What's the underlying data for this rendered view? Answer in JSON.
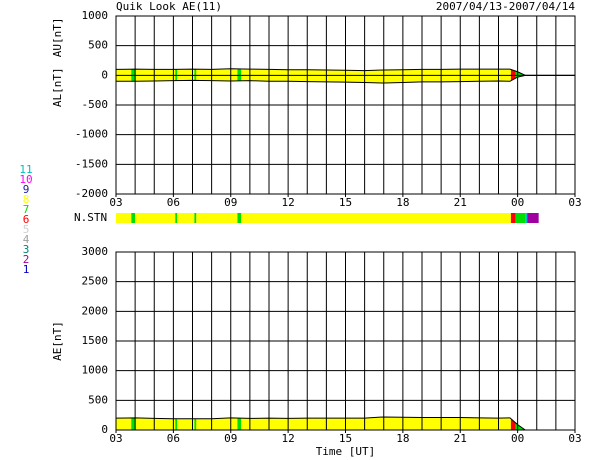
{
  "title": "Quik Look AE(11)",
  "date_range": "2007/04/13-2007/04/14",
  "chart_data": [
    {
      "type": "band",
      "ylabels": [
        "AU[nT]",
        "AL[nT]"
      ],
      "x": [
        3,
        4,
        5,
        6,
        7,
        8,
        9,
        10,
        11,
        12,
        13,
        14,
        15,
        16,
        17,
        18,
        19,
        20,
        21,
        22,
        23,
        23.6,
        24,
        24.4,
        25,
        27
      ],
      "au": [
        100,
        105,
        100,
        100,
        105,
        100,
        110,
        105,
        100,
        95,
        95,
        90,
        85,
        80,
        90,
        95,
        100,
        100,
        105,
        105,
        105,
        105,
        60,
        0,
        0,
        0
      ],
      "al": [
        -100,
        -100,
        -95,
        -90,
        -85,
        -90,
        -95,
        -90,
        -100,
        -100,
        -105,
        -110,
        -115,
        -120,
        -130,
        -120,
        -110,
        -110,
        -105,
        -100,
        -95,
        -100,
        -30,
        0,
        0,
        0
      ],
      "xlim": [
        3,
        27
      ],
      "xticks": [
        {
          "value": 3,
          "label": "03"
        },
        {
          "value": 6,
          "label": "06"
        },
        {
          "value": 9,
          "label": "09"
        },
        12,
        15,
        18,
        21,
        {
          "value": 24,
          "label": "00"
        },
        {
          "value": 27,
          "label": "03"
        }
      ],
      "ylim": [
        -2000,
        1000
      ],
      "yticks": [
        -2000,
        -1500,
        -1000,
        -500,
        0,
        500,
        1000
      ],
      "grid": true,
      "color": "#ffff00"
    },
    {
      "type": "area",
      "ylabel": "AE[nT]",
      "xlabel": "Time [UT]",
      "x": [
        3,
        4,
        5,
        6,
        7,
        8,
        9,
        10,
        11,
        12,
        13,
        14,
        15,
        16,
        17,
        18,
        19,
        20,
        21,
        22,
        23,
        23.6,
        24,
        24.4,
        25,
        27
      ],
      "values": [
        200,
        205,
        195,
        190,
        190,
        190,
        205,
        195,
        200,
        195,
        200,
        200,
        200,
        200,
        220,
        215,
        210,
        210,
        210,
        205,
        200,
        205,
        90,
        0,
        0,
        0
      ],
      "xlim": [
        3,
        27
      ],
      "xticks": [
        {
          "value": 3,
          "label": "03"
        },
        {
          "value": 6,
          "label": "06"
        },
        {
          "value": 9,
          "label": "09"
        },
        12,
        15,
        18,
        21,
        {
          "value": 24,
          "label": "00"
        },
        {
          "value": 27,
          "label": "03"
        }
      ],
      "ylim": [
        0,
        3000
      ],
      "yticks": [
        0,
        500,
        1000,
        1500,
        2000,
        2500,
        3000
      ],
      "grid": true,
      "color": "#ffff00"
    },
    {
      "type": "strip",
      "label": "N.STN",
      "xlim": [
        3,
        27
      ],
      "segments": [
        {
          "start": 3,
          "end": 3.8,
          "count": 8
        },
        {
          "start": 3.8,
          "end": 4.0,
          "count": 7
        },
        {
          "start": 4.0,
          "end": 6.1,
          "count": 8
        },
        {
          "start": 6.1,
          "end": 6.2,
          "count": 7
        },
        {
          "start": 6.2,
          "end": 7.1,
          "count": 8
        },
        {
          "start": 7.1,
          "end": 7.2,
          "count": 7
        },
        {
          "start": 7.2,
          "end": 9.35,
          "count": 8
        },
        {
          "start": 9.35,
          "end": 9.55,
          "count": 7
        },
        {
          "start": 9.55,
          "end": 23.65,
          "count": 8
        },
        {
          "start": 23.65,
          "end": 23.9,
          "count": 6
        },
        {
          "start": 23.9,
          "end": 24.4,
          "count": 7
        },
        {
          "start": 24.4,
          "end": 24.5,
          "count": 11
        },
        {
          "start": 24.5,
          "end": 25.1,
          "count": 2
        }
      ],
      "legend": [
        {
          "label": "11",
          "color": "#00c0c0"
        },
        {
          "label": "10",
          "color": "#ff00ff"
        },
        {
          "label": "9",
          "color": "#2020a0"
        },
        {
          "label": "8",
          "color": "#ffff00"
        },
        {
          "label": "7",
          "color": "#00e000"
        },
        {
          "label": "6",
          "color": "#ff0000"
        },
        {
          "label": "5",
          "color": "#d0d0d0"
        },
        {
          "label": "4",
          "color": "#a0a0a0"
        },
        {
          "label": "3",
          "color": "#008080"
        },
        {
          "label": "2",
          "color": "#a000a0"
        },
        {
          "label": "1",
          "color": "#0000c0"
        }
      ]
    }
  ]
}
